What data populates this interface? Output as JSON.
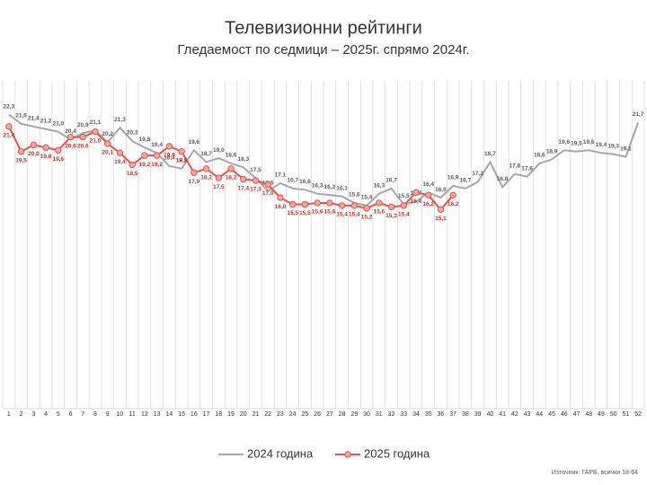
{
  "chart_data": {
    "type": "line",
    "title": "Телевизионни рейтинги",
    "subtitle": "Гледаемост по седмици – 2025г. спрямо 2024г.",
    "source": "Източник: ГАРБ, всички 18-64",
    "categories": [
      "1",
      "2",
      "3",
      "4",
      "5",
      "6",
      "7",
      "8",
      "9",
      "10",
      "11",
      "12",
      "13",
      "14",
      "15",
      "16",
      "17",
      "18",
      "19",
      "20",
      "21",
      "22",
      "23",
      "24",
      "25",
      "26",
      "27",
      "28",
      "29",
      "30",
      "31",
      "32",
      "33",
      "34",
      "35",
      "36",
      "37",
      "38",
      "39",
      "40",
      "41",
      "42",
      "43",
      "44",
      "45",
      "46",
      "47",
      "48",
      "49",
      "50",
      "51",
      "52"
    ],
    "ylim": [
      0,
      23.5
    ],
    "grid": true,
    "legend": "bottom",
    "series": [
      {
        "name": "2024 година",
        "color": "#a6a6a6",
        "values": [
          22.3,
          21.6,
          21.4,
          21.2,
          21.0,
          20.4,
          20.9,
          21.1,
          20.2,
          21.3,
          20.3,
          19.8,
          19.4,
          18.4,
          18.2,
          19.6,
          18.7,
          19.0,
          18.6,
          18.3,
          17.5,
          16.5,
          17.1,
          16.7,
          16.6,
          16.3,
          16.2,
          16.1,
          15.6,
          15.4,
          16.3,
          16.7,
          15.5,
          15.7,
          16.4,
          16.0,
          16.9,
          16.7,
          17.2,
          18.7,
          16.8,
          17.8,
          17.6,
          18.6,
          18.9,
          19.6,
          19.5,
          19.6,
          19.4,
          19.3,
          19.1,
          21.7
        ],
        "value_labels": [
          "22,3",
          "21,6",
          "21,4",
          "21,2",
          "21,0",
          "20,4",
          "20,9",
          "21,1",
          "20,2",
          "21,3",
          "20,3",
          "19,8",
          "19,4",
          "18,4",
          "18,2",
          "19,6",
          "18,7",
          "19,0",
          "18,6",
          "18,3",
          "17,5",
          "16,5",
          "17,1",
          "16,7",
          "16,6",
          "16,3",
          "16,2",
          "16,1",
          "15,6",
          "15,4",
          "16,3",
          "16,7",
          "15,5",
          "15,7",
          "16,4",
          "16,0",
          "16,9",
          "16,7",
          "17,2",
          "18,7",
          "16,8",
          "17,8",
          "17,6",
          "18,6",
          "18,9",
          "19,6",
          "19,5",
          "19,6",
          "19,4",
          "19,3",
          "19,1",
          "21,7"
        ]
      },
      {
        "name": "2025 година",
        "color": "#e8524f",
        "values": [
          21.4,
          19.5,
          20.0,
          19.8,
          19.6,
          20.6,
          20.6,
          21.0,
          20.1,
          19.4,
          18.5,
          19.2,
          19.2,
          19.9,
          19.5,
          17.9,
          18.2,
          17.5,
          18.2,
          17.4,
          17.3,
          17.0,
          16.0,
          15.5,
          15.5,
          15.6,
          15.6,
          15.4,
          15.4,
          15.2,
          15.6,
          15.3,
          15.4,
          16.4,
          16.2,
          15.1,
          16.2,
          null,
          null,
          null,
          null,
          null,
          null,
          null,
          null,
          null,
          null,
          null,
          null,
          null,
          null,
          null
        ],
        "value_labels": [
          "21,4",
          "19,5",
          "20,0",
          "19,8",
          "19,6",
          "20,6",
          "20,6",
          "21,0",
          "20,1",
          "19,4",
          "18,5",
          "19,2",
          "19,2",
          "19,9",
          "19,5",
          "17,9",
          "18,2",
          "17,5",
          "18,2",
          "17,4",
          "17,3",
          "17,0",
          "16,0",
          "15,5",
          "15,5",
          "15,6",
          "15,6",
          "15,4",
          "15,4",
          "15,2",
          "15,6",
          "15,3",
          "15,4",
          "16,4",
          "16,2",
          "15,1",
          "16,2",
          null,
          null,
          null,
          null,
          null,
          null,
          null,
          null,
          null,
          null,
          null,
          null,
          null,
          null,
          null
        ]
      }
    ]
  }
}
